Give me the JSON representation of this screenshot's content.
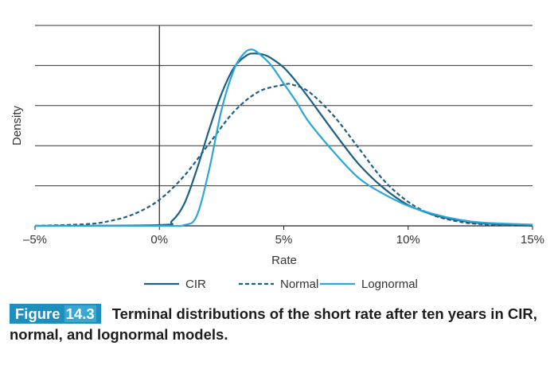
{
  "chart_data": {
    "type": "line",
    "title": "",
    "xlabel": "Rate",
    "ylabel": "Density",
    "xlim": [
      -5,
      15
    ],
    "ylim": [
      0,
      5
    ],
    "x_tick_labels": [
      "–5%",
      "0%",
      "5%",
      "10%",
      "15%"
    ],
    "x_tick_values": [
      -5,
      0,
      5,
      10,
      15
    ],
    "grid": "horizontal",
    "legend_position": "bottom",
    "series": [
      {
        "name": "CIR",
        "color": "#1d5f85",
        "style": "solid",
        "x": [
          -5,
          0,
          0.5,
          1,
          1.5,
          2,
          2.5,
          3,
          3.5,
          3.8,
          4.2,
          4.5,
          5,
          5.5,
          6,
          7,
          8,
          9,
          10,
          11,
          12,
          13,
          15
        ],
        "y": [
          0,
          0.02,
          0.12,
          0.55,
          1.4,
          2.4,
          3.3,
          3.95,
          4.25,
          4.3,
          4.27,
          4.18,
          3.95,
          3.6,
          3.2,
          2.35,
          1.55,
          0.95,
          0.52,
          0.28,
          0.14,
          0.06,
          0.02
        ]
      },
      {
        "name": "Normal",
        "color": "#1d5f85",
        "style": "dashed",
        "x": [
          -5,
          -3,
          -2,
          -1,
          0,
          1,
          2,
          3,
          4,
          5,
          5.3,
          6,
          7,
          8,
          9,
          10,
          11,
          12,
          13,
          15
        ],
        "y": [
          0,
          0.04,
          0.12,
          0.3,
          0.65,
          1.25,
          2.05,
          2.85,
          3.35,
          3.52,
          3.53,
          3.35,
          2.75,
          1.95,
          1.15,
          0.6,
          0.27,
          0.11,
          0.04,
          0.0
        ]
      },
      {
        "name": "Lognormal",
        "color": "#2aa6d8",
        "style": "solid",
        "x": [
          -5,
          0,
          1,
          1.5,
          2,
          2.5,
          3,
          3.4,
          3.7,
          4,
          4.5,
          5,
          5.5,
          6,
          7,
          8,
          9,
          10,
          11,
          12,
          13,
          15
        ],
        "y": [
          0,
          0.0,
          0.02,
          0.25,
          1.4,
          2.9,
          3.9,
          4.3,
          4.4,
          4.3,
          4.0,
          3.55,
          3.1,
          2.6,
          1.85,
          1.2,
          0.8,
          0.5,
          0.3,
          0.16,
          0.08,
          0.03
        ]
      }
    ]
  },
  "caption": {
    "figure_word": "Figure",
    "figure_number": "14.3",
    "text": "Terminal distributions of the short rate after ten years in CIR, normal, and lognormal models."
  }
}
